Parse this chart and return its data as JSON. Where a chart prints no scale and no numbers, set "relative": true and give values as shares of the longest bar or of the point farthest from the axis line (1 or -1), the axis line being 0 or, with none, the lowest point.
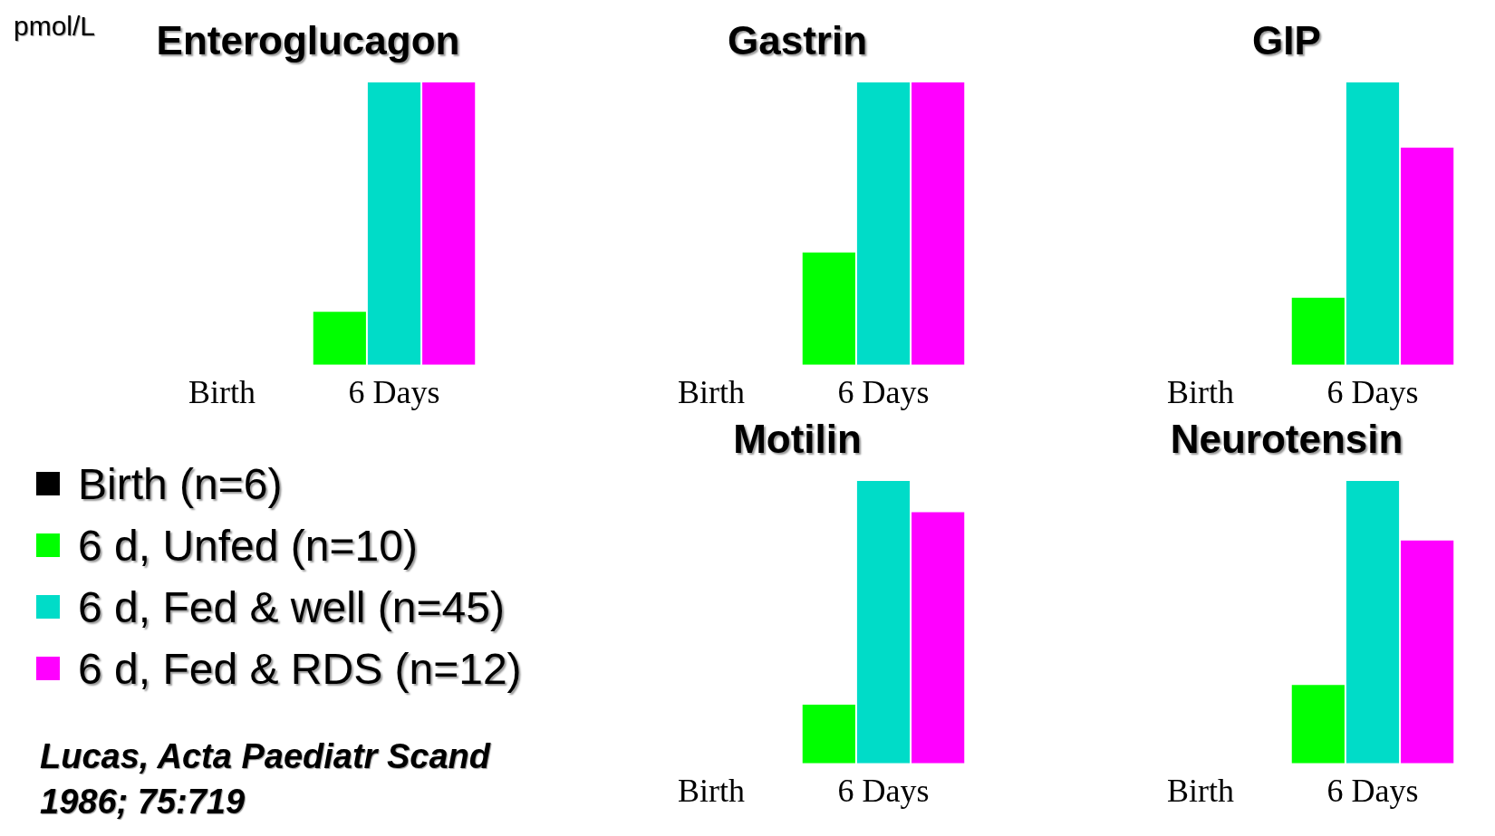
{
  "chart_data": [
    {
      "type": "bar",
      "title": "Enteroglucagon",
      "ylabel": "pmol/L",
      "relative": true,
      "categories": [
        "Birth",
        "6 Days"
      ],
      "legend": "bottom",
      "annotations": [
        "Lucas, Acta Paediatr Scand 1986; 75:719"
      ],
      "series": [
        {
          "name": "Birth (n=6)",
          "color": "#000000",
          "values": [
            null,
            null
          ]
        },
        {
          "name": "6 d, Unfed (n=10)",
          "color": "#00ff00",
          "values": [
            null,
            0.19
          ]
        },
        {
          "name": "6 d, Fed & well (n=45)",
          "color": "#00dcc8",
          "values": [
            null,
            1
          ]
        },
        {
          "name": "6 d, Fed & RDS (n=12)",
          "color": "#ff00ff",
          "values": [
            null,
            1
          ]
        }
      ]
    },
    {
      "type": "bar",
      "title": "Gastrin",
      "relative": true,
      "categories": [
        "Birth",
        "6 Days"
      ],
      "series": [
        {
          "color": "#000000",
          "values": [
            null,
            null
          ]
        },
        {
          "color": "#00ff00",
          "values": [
            null,
            0.4
          ]
        },
        {
          "color": "#00dcc8",
          "values": [
            null,
            1
          ]
        },
        {
          "color": "#ff00ff",
          "values": [
            null,
            1
          ]
        }
      ]
    },
    {
      "type": "bar",
      "title": "GIP",
      "relative": true,
      "categories": [
        "Birth",
        "6 Days"
      ],
      "series": [
        {
          "color": "#000000",
          "values": [
            null,
            null
          ]
        },
        {
          "color": "#00ff00",
          "values": [
            null,
            0.24
          ]
        },
        {
          "color": "#00dcc8",
          "values": [
            null,
            1
          ]
        },
        {
          "color": "#ff00ff",
          "values": [
            null,
            0.77
          ]
        }
      ]
    },
    {
      "type": "bar",
      "title": "Motilin",
      "relative": true,
      "categories": [
        "Birth",
        "6 Days"
      ],
      "series": [
        {
          "color": "#000000",
          "values": [
            null,
            null
          ]
        },
        {
          "color": "#00ff00",
          "values": [
            null,
            0.21
          ]
        },
        {
          "color": "#00dcc8",
          "values": [
            null,
            1
          ]
        },
        {
          "color": "#ff00ff",
          "values": [
            null,
            0.89
          ]
        }
      ]
    },
    {
      "type": "bar",
      "title": "Neurotensin",
      "relative": true,
      "categories": [
        "Birth",
        "6 Days"
      ],
      "series": [
        {
          "color": "#000000",
          "values": [
            null,
            null
          ]
        },
        {
          "color": "#00ff00",
          "values": [
            null,
            0.28
          ]
        },
        {
          "color": "#00dcc8",
          "values": [
            null,
            1
          ]
        },
        {
          "color": "#ff00ff",
          "values": [
            null,
            0.79
          ]
        }
      ]
    }
  ]
}
